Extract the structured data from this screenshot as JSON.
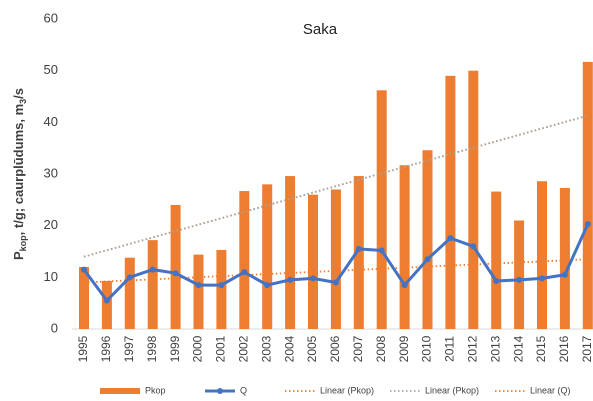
{
  "chart_data": {
    "type": "bar_line",
    "title": "Saka",
    "ylabel_parts": [
      "P",
      "kop",
      ", t/g; caurplūdums, m",
      "3",
      "/s"
    ],
    "categories": [
      "1995",
      "1996",
      "1997",
      "1998",
      "1999",
      "2000",
      "2001",
      "2002",
      "2003",
      "2004",
      "2005",
      "2006",
      "2007",
      "2008",
      "2009",
      "2010",
      "2011",
      "2012",
      "2013",
      "2014",
      "2015",
      "2016",
      "2017"
    ],
    "series": [
      {
        "name": "Pkop",
        "kind": "bar",
        "color": "#ed7d31",
        "values": [
          12,
          9.3,
          13.8,
          17.2,
          24,
          14.4,
          15.3,
          26.7,
          28,
          29.6,
          26,
          27,
          29.6,
          46.2,
          31.7,
          34.6,
          49,
          50,
          26.6,
          21,
          28.6,
          27.3,
          51.7
        ]
      },
      {
        "name": "Q",
        "kind": "line",
        "color": "#4472c4",
        "values": [
          11.5,
          5.5,
          10,
          11.5,
          10.8,
          8.5,
          8.5,
          11,
          8.5,
          9.5,
          9.8,
          9,
          15.5,
          15.2,
          8.5,
          13.5,
          17.6,
          16,
          9.3,
          9.5,
          9.8,
          10.5,
          20.3
        ]
      }
    ],
    "trendlines": [
      {
        "name": "Linear (Pkop)",
        "color": "#ed7d31",
        "values": [
          14,
          41.3
        ]
      },
      {
        "name": "Linear (Pkop)",
        "color": "#a5a5a5",
        "values": [
          14,
          41.3
        ]
      },
      {
        "name": "Linear (Q)",
        "color": "#ed7d31",
        "values": [
          9,
          13.5
        ]
      }
    ],
    "ylim": [
      0,
      60
    ],
    "yticks": [
      0,
      10,
      20,
      30,
      40,
      50,
      60
    ],
    "grid": false
  }
}
